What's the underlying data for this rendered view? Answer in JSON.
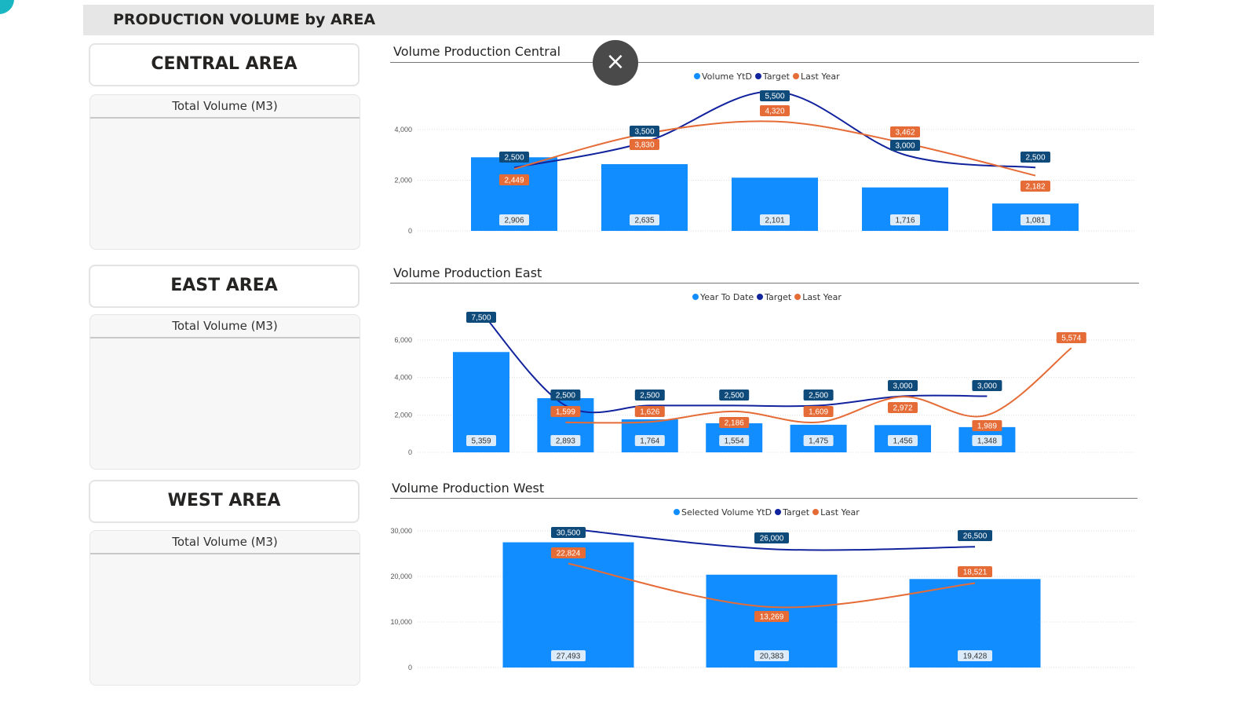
{
  "header": {
    "title": "PRODUCTION VOLUME by AREA"
  },
  "areas": [
    {
      "name": "CENTRAL AREA",
      "card_label": "Total Volume (M3)"
    },
    {
      "name": "EAST AREA",
      "card_label": "Total Volume (M3)"
    },
    {
      "name": "WEST AREA",
      "card_label": "Total Volume (M3)"
    }
  ],
  "close_button": {
    "icon": "close-icon",
    "label": "×"
  },
  "colors": {
    "bar": "#118dff",
    "target": "#12239e",
    "last_year": "#e66c37",
    "target_label": "#0e4a7a",
    "header_bg": "#e6e6e6"
  },
  "chart_data": [
    {
      "type": "bar+line",
      "title": "Volume Production Central",
      "legend": [
        "Volume YtD",
        "Target",
        "Last Year"
      ],
      "y_ticks": [
        "0",
        "2,000",
        "4,000"
      ],
      "ylim": [
        0,
        6000
      ],
      "series": [
        {
          "name": "Volume YtD",
          "type": "bar",
          "values": [
            2906,
            2635,
            2101,
            1716,
            1081
          ],
          "labels": [
            "2,906",
            "2,635",
            "2,101",
            "1,716",
            "1,081"
          ]
        },
        {
          "name": "Target",
          "type": "line",
          "values": [
            2500,
            3500,
            5500,
            3000,
            2500
          ],
          "labels": [
            "2,500",
            "3,500",
            "5,500",
            "3,000",
            "2,500"
          ]
        },
        {
          "name": "Last Year",
          "type": "line",
          "values": [
            2449,
            3830,
            4320,
            3462,
            2182
          ],
          "labels": [
            "2,449",
            "3,830",
            "4,320",
            "3,462",
            "2,182"
          ]
        }
      ]
    },
    {
      "type": "bar+line",
      "title": "Volume Production East",
      "legend": [
        "Year To Date",
        "Target",
        "Last Year"
      ],
      "y_ticks": [
        "0",
        "2,000",
        "4,000",
        "6,000"
      ],
      "ylim": [
        0,
        8000
      ],
      "series": [
        {
          "name": "Year To Date",
          "type": "bar",
          "values": [
            5359,
            2893,
            1764,
            1554,
            1475,
            1456,
            1348,
            null
          ],
          "labels": [
            "5,359",
            "2,893",
            "1,764",
            "1,554",
            "1,475",
            "1,456",
            "1,348",
            null
          ]
        },
        {
          "name": "Target",
          "type": "line",
          "values": [
            7500,
            2500,
            2500,
            2500,
            2500,
            3000,
            3000,
            null
          ],
          "labels": [
            "7,500",
            "2,500",
            "2,500",
            "2,500",
            "2,500",
            "3,000",
            "3,000",
            null
          ]
        },
        {
          "name": "Last Year",
          "type": "line",
          "values": [
            null,
            1599,
            1626,
            2186,
            1609,
            2972,
            1989,
            5574
          ],
          "labels": [
            null,
            "1,599",
            "1,626",
            "2,186",
            "1,609",
            "2,972",
            "1,989",
            "5,574"
          ]
        }
      ]
    },
    {
      "type": "bar+line",
      "title": "Volume Production West",
      "legend": [
        "Selected Volume YtD",
        "Target",
        "Last Year"
      ],
      "y_ticks": [
        "0",
        "10,000",
        "20,000",
        "30,000"
      ],
      "ylim": [
        0,
        32000
      ],
      "series": [
        {
          "name": "Selected Volume YtD",
          "type": "bar",
          "values": [
            27493,
            20383,
            19428
          ],
          "labels": [
            "27,493",
            "20,383",
            "19,428"
          ]
        },
        {
          "name": "Target",
          "type": "line",
          "values": [
            30500,
            26000,
            26500
          ],
          "labels": [
            "30,500",
            "26,000",
            "26,500"
          ]
        },
        {
          "name": "Last Year",
          "type": "line",
          "values": [
            22824,
            13269,
            18521
          ],
          "labels": [
            "22,824",
            "13,269",
            "18,521"
          ]
        }
      ]
    }
  ]
}
